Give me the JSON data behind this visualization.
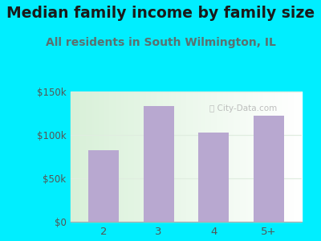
{
  "title": "Median family income by family size",
  "subtitle": "All residents in South Wilmington, IL",
  "categories": [
    "2",
    "3",
    "4",
    "5+"
  ],
  "values": [
    82000,
    133000,
    103000,
    122000
  ],
  "bar_color": "#b8a8d0",
  "outer_bg": "#00eeff",
  "plot_bg_left": "#d8f0d8",
  "plot_bg_right": "#f8fff8",
  "title_color": "#1a1a1a",
  "subtitle_color": "#5a7070",
  "tick_color": "#555555",
  "ylim": [
    0,
    150000
  ],
  "yticks": [
    0,
    50000,
    100000,
    150000
  ],
  "ytick_labels": [
    "$0",
    "$50k",
    "$100k",
    "$150k"
  ],
  "watermark": "ⓘ City-Data.com",
  "title_fontsize": 13.5,
  "subtitle_fontsize": 10
}
